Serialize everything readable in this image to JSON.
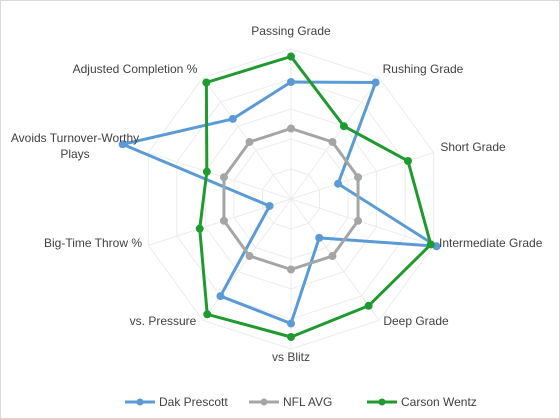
{
  "chart_data": {
    "type": "radar",
    "title": "",
    "axes": [
      {
        "label": "Passing Grade"
      },
      {
        "label": "Rushing Grade"
      },
      {
        "label": "Short Grade"
      },
      {
        "label": "Intermediate Grade"
      },
      {
        "label": "Deep Grade"
      },
      {
        "label": "vs Blitz"
      },
      {
        "label": "vs. Pressure"
      },
      {
        "label": "Big-Time Throw %"
      },
      {
        "label": "Avoids Turnover-Worthy Plays"
      },
      {
        "label": "Adjusted Completion %"
      }
    ],
    "range": [
      0,
      100
    ],
    "gridlines": [
      20,
      40,
      60,
      80,
      100
    ],
    "legend_position": "bottom",
    "series": [
      {
        "name": "Dak Prescott",
        "color": "#5b9bd5",
        "values": [
          78,
          96,
          33,
          102,
          32,
          83,
          80,
          15,
          118,
          66
        ]
      },
      {
        "name": "NFL AVG",
        "color": "#a5a5a5",
        "values": [
          47,
          47,
          47,
          47,
          47,
          47,
          47,
          47,
          47,
          47
        ]
      },
      {
        "name": "Carson Wentz",
        "color": "#1f9a2f",
        "values": [
          95,
          60,
          82,
          98,
          88,
          92,
          95,
          64,
          59,
          96
        ]
      }
    ]
  }
}
